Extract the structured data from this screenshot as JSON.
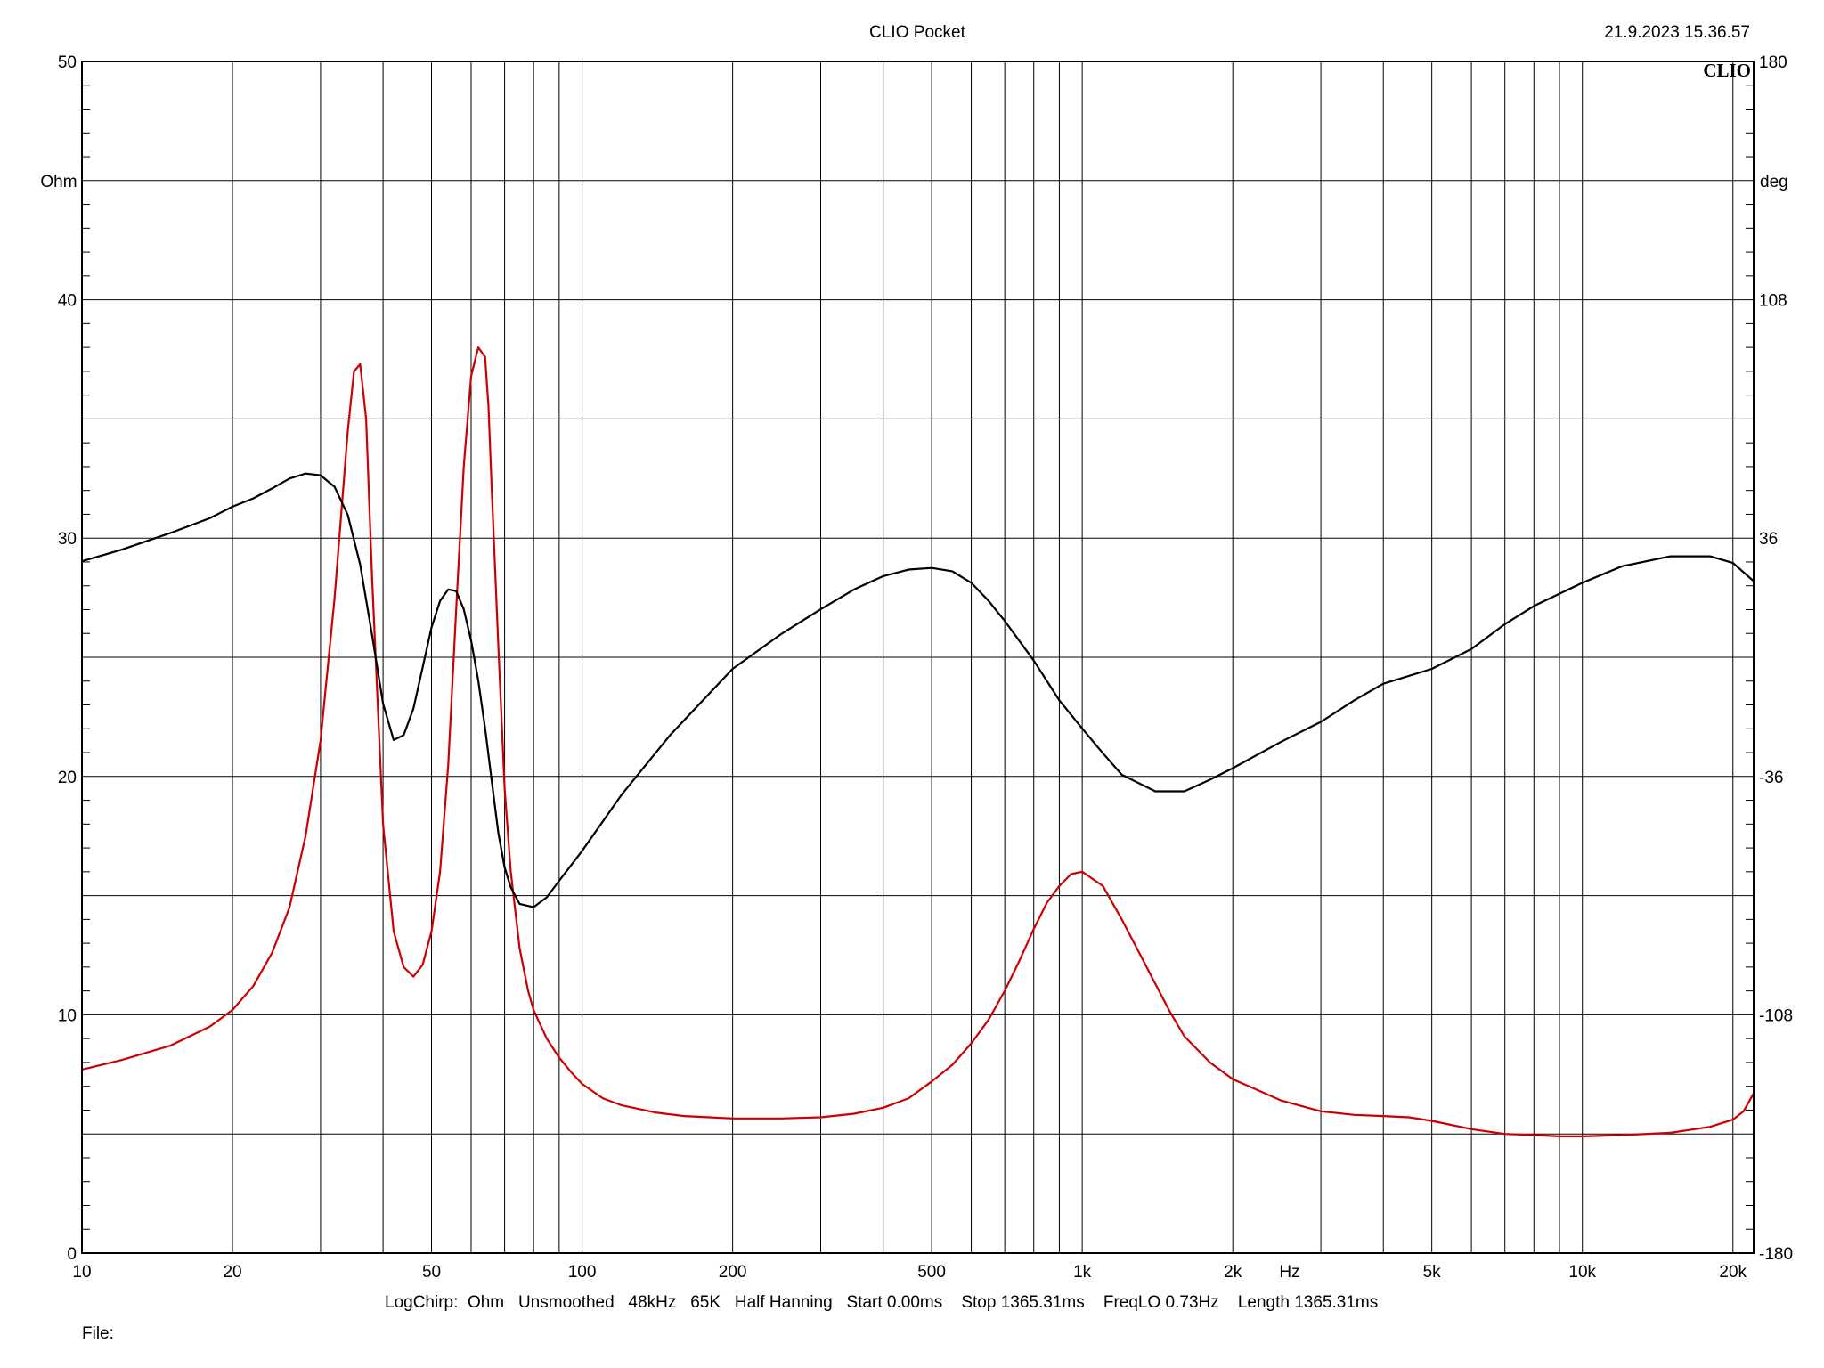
{
  "header": {
    "title": "CLIO Pocket",
    "datetime": "21.9.2023 15.36.57",
    "logo": "CLIO"
  },
  "footer": {
    "params": "LogChirp:  Ohm   Unsmoothed   48kHz   65K   Half Hanning   Start 0.00ms    Stop 1365.31ms    FreqLO 0.73Hz    Length 1365.31ms",
    "file_label": "File:"
  },
  "colors": {
    "impedance": "#cc0000",
    "phase": "#000000",
    "grid": "#000000"
  },
  "chart_data": {
    "type": "line",
    "x_scale": "log",
    "grid": true,
    "xlim": [
      10,
      22000
    ],
    "ylim_left": [
      0,
      50
    ],
    "ylim_right": [
      -180,
      180
    ],
    "ylabel_left": "Ohm",
    "ylabel_right": "deg",
    "xunit": "Hz",
    "x_tick_labels": [
      {
        "v": 10,
        "t": "10"
      },
      {
        "v": 20,
        "t": "20"
      },
      {
        "v": 50,
        "t": "50"
      },
      {
        "v": 100,
        "t": "100"
      },
      {
        "v": 200,
        "t": "200"
      },
      {
        "v": 500,
        "t": "500"
      },
      {
        "v": 1000,
        "t": "1k"
      },
      {
        "v": 2000,
        "t": "2k"
      },
      {
        "v": 5000,
        "t": "5k"
      },
      {
        "v": 10000,
        "t": "10k"
      },
      {
        "v": 20000,
        "t": "20k"
      }
    ],
    "y_left_ticks": [
      0,
      10,
      20,
      30,
      40,
      50
    ],
    "y_right_ticks": [
      -180,
      -108,
      -36,
      36,
      108,
      180
    ],
    "series": [
      {
        "axis": "left",
        "color": "#cc0000",
        "x": [
          10,
          12,
          15,
          18,
          20,
          22,
          24,
          26,
          28,
          30,
          32,
          34,
          35,
          36,
          37,
          38,
          40,
          42,
          44,
          46,
          48,
          50,
          52,
          54,
          56,
          58,
          60,
          62,
          64,
          65,
          66,
          68,
          70,
          72,
          75,
          78,
          80,
          85,
          90,
          95,
          100,
          110,
          120,
          140,
          160,
          180,
          200,
          250,
          300,
          350,
          400,
          450,
          500,
          550,
          600,
          650,
          700,
          750,
          800,
          850,
          900,
          950,
          1000,
          1100,
          1200,
          1300,
          1400,
          1500,
          1600,
          1800,
          2000,
          2500,
          3000,
          3500,
          4000,
          4500,
          5000,
          6000,
          7000,
          8000,
          9000,
          10000,
          12000,
          15000,
          18000,
          20000,
          21000,
          22000
        ],
        "y": [
          7.7,
          8.1,
          8.7,
          9.5,
          10.2,
          11.2,
          12.6,
          14.5,
          17.5,
          21.5,
          27.5,
          34.5,
          37.0,
          37.3,
          35.0,
          28.5,
          18.0,
          13.5,
          12.0,
          11.6,
          12.1,
          13.5,
          16.0,
          20.5,
          27.0,
          33.0,
          36.8,
          38.0,
          37.6,
          35.5,
          32.0,
          25.5,
          19.5,
          16.0,
          12.8,
          11.0,
          10.2,
          9.0,
          8.2,
          7.6,
          7.1,
          6.5,
          6.2,
          5.9,
          5.75,
          5.7,
          5.65,
          5.65,
          5.7,
          5.85,
          6.1,
          6.5,
          7.2,
          7.9,
          8.8,
          9.8,
          11.0,
          12.3,
          13.6,
          14.7,
          15.4,
          15.9,
          16.0,
          15.4,
          14.0,
          12.6,
          11.3,
          10.1,
          9.1,
          8.0,
          7.3,
          6.4,
          5.95,
          5.8,
          5.75,
          5.7,
          5.55,
          5.2,
          5.0,
          4.95,
          4.9,
          4.9,
          4.95,
          5.05,
          5.3,
          5.6,
          5.95,
          6.7
        ]
      },
      {
        "axis": "right",
        "color": "#000000",
        "x": [
          10,
          12,
          15,
          18,
          20,
          22,
          24,
          26,
          28,
          30,
          32,
          34,
          36,
          38,
          40,
          42,
          44,
          46,
          48,
          50,
          52,
          54,
          56,
          58,
          60,
          62,
          64,
          66,
          68,
          70,
          72,
          75,
          80,
          85,
          90,
          100,
          120,
          150,
          200,
          250,
          300,
          350,
          400,
          450,
          500,
          550,
          600,
          650,
          700,
          800,
          900,
          1000,
          1100,
          1200,
          1400,
          1600,
          1800,
          2000,
          2500,
          3000,
          3500,
          4000,
          5000,
          6000,
          7000,
          8000,
          10000,
          12000,
          15000,
          18000,
          20000,
          22000
        ],
        "y": [
          29.0,
          32.5,
          37.5,
          42.0,
          45.5,
          48.0,
          51.0,
          54.0,
          55.5,
          55.0,
          51.5,
          43.0,
          28.0,
          7.0,
          -14.0,
          -25.0,
          -23.5,
          -15.5,
          -3.0,
          9.0,
          17.0,
          20.5,
          20.0,
          14.5,
          5.0,
          -7.0,
          -21.5,
          -37.5,
          -53.0,
          -63.5,
          -69.5,
          -74.5,
          -75.5,
          -72.5,
          -67.5,
          -58.5,
          -41.5,
          -23.5,
          -3.5,
          7.0,
          14.5,
          20.5,
          24.5,
          26.5,
          27.0,
          26.0,
          22.5,
          17.0,
          11.0,
          -1.0,
          -13.0,
          -21.5,
          -29.0,
          -35.5,
          -40.5,
          -40.5,
          -37.0,
          -33.5,
          -25.5,
          -19.5,
          -13.0,
          -8.0,
          -3.5,
          2.5,
          10.0,
          15.5,
          22.5,
          27.5,
          30.5,
          30.5,
          28.5,
          23.0
        ]
      }
    ]
  }
}
